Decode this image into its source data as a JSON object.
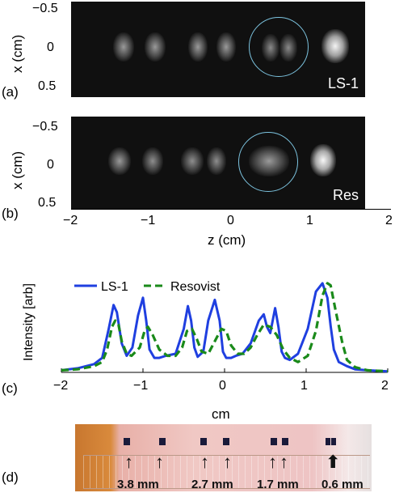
{
  "panel_a": {
    "label": "(a)",
    "tag": "LS-1",
    "ylabel": "x (cm)",
    "yticks": [
      "−0.5",
      "0",
      "0.5"
    ]
  },
  "panel_b": {
    "label": "(b)",
    "tag": "Res",
    "ylabel": "x (cm)",
    "yticks": [
      "−0.5",
      "0",
      "0.5"
    ],
    "xticks": [
      "−2",
      "−1",
      "0",
      "1",
      "2"
    ],
    "xlabel": "z (cm)"
  },
  "panel_c": {
    "label": "(c)",
    "xticks": [
      "−2",
      "−1",
      "0",
      "1",
      "2"
    ],
    "xlabel": "cm"
  },
  "panel_d": {
    "label": "(d)",
    "spacings": [
      "3.8 mm",
      "2.7 mm",
      "1.7 mm",
      "0.6 mm"
    ]
  },
  "colors": {
    "ls1": "#1f3fe0",
    "resovist": "#1a8a1a",
    "circle": "#7cc3df"
  },
  "chart_data": {
    "type": "line",
    "ylabel": "Intensity [arb]",
    "xlim": [
      -2,
      2
    ],
    "ylim": [
      0,
      1
    ],
    "legend_position": "top-left",
    "series": [
      {
        "name": "LS-1",
        "x": [
          -2.0,
          -1.8,
          -1.6,
          -1.5,
          -1.42,
          -1.36,
          -1.32,
          -1.26,
          -1.2,
          -1.13,
          -1.06,
          -1.0,
          -0.96,
          -0.92,
          -0.86,
          -0.8,
          -0.72,
          -0.6,
          -0.5,
          -0.45,
          -0.41,
          -0.37,
          -0.33,
          -0.26,
          -0.2,
          -0.12,
          -0.06,
          -0.02,
          0.02,
          0.08,
          0.14,
          0.22,
          0.32,
          0.42,
          0.48,
          0.52,
          0.56,
          0.62,
          0.66,
          0.7,
          0.74,
          0.8,
          0.9,
          1.02,
          1.12,
          1.2,
          1.26,
          1.3,
          1.34,
          1.4,
          1.5,
          1.6,
          1.75,
          2.0
        ],
        "values": [
          0.02,
          0.04,
          0.08,
          0.14,
          0.42,
          0.65,
          0.58,
          0.28,
          0.16,
          0.24,
          0.55,
          0.72,
          0.5,
          0.22,
          0.14,
          0.14,
          0.16,
          0.18,
          0.42,
          0.64,
          0.5,
          0.24,
          0.15,
          0.2,
          0.5,
          0.7,
          0.5,
          0.2,
          0.14,
          0.14,
          0.16,
          0.18,
          0.28,
          0.5,
          0.56,
          0.44,
          0.38,
          0.62,
          0.44,
          0.2,
          0.14,
          0.12,
          0.18,
          0.42,
          0.78,
          0.86,
          0.72,
          0.45,
          0.22,
          0.1,
          0.06,
          0.03,
          0.02,
          0.01
        ]
      },
      {
        "name": "Resovist",
        "x": [
          -2.0,
          -1.8,
          -1.6,
          -1.5,
          -1.44,
          -1.38,
          -1.34,
          -1.3,
          -1.26,
          -1.2,
          -1.14,
          -1.04,
          -0.98,
          -0.94,
          -0.88,
          -0.8,
          -0.7,
          -0.6,
          -0.52,
          -0.46,
          -0.4,
          -0.34,
          -0.28,
          -0.2,
          -0.12,
          -0.04,
          0.02,
          0.08,
          0.16,
          0.24,
          0.32,
          0.4,
          0.48,
          0.56,
          0.64,
          0.72,
          0.8,
          0.9,
          1.02,
          1.12,
          1.2,
          1.26,
          1.3,
          1.36,
          1.44,
          1.5,
          1.6,
          1.75,
          2.0
        ],
        "values": [
          0.02,
          0.03,
          0.06,
          0.1,
          0.22,
          0.44,
          0.5,
          0.46,
          0.3,
          0.18,
          0.16,
          0.24,
          0.4,
          0.44,
          0.36,
          0.22,
          0.16,
          0.16,
          0.24,
          0.4,
          0.42,
          0.32,
          0.2,
          0.18,
          0.3,
          0.42,
          0.4,
          0.26,
          0.18,
          0.18,
          0.24,
          0.36,
          0.46,
          0.44,
          0.36,
          0.22,
          0.14,
          0.1,
          0.16,
          0.4,
          0.74,
          0.86,
          0.84,
          0.6,
          0.3,
          0.12,
          0.05,
          0.02,
          0.01
        ]
      }
    ]
  }
}
